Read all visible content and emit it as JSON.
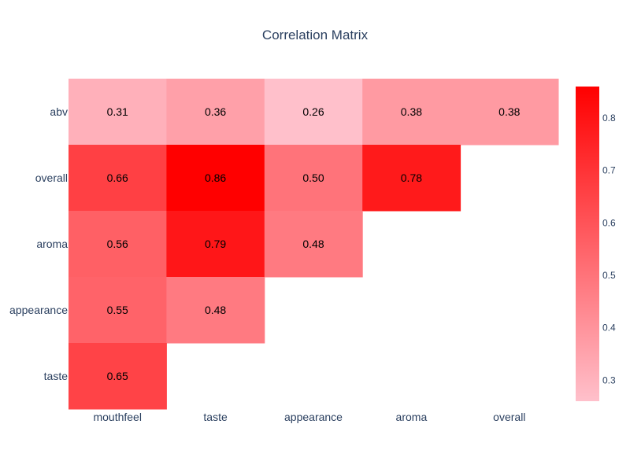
{
  "chart_data": {
    "type": "heatmap",
    "title": "Correlation Matrix",
    "x": [
      "mouthfeel",
      "taste",
      "appearance",
      "aroma",
      "overall"
    ],
    "y": [
      "abv",
      "overall",
      "aroma",
      "appearance",
      "taste"
    ],
    "z": [
      [
        0.31,
        0.36,
        0.26,
        0.38,
        0.38
      ],
      [
        0.66,
        0.86,
        0.5,
        0.78,
        null
      ],
      [
        0.56,
        0.79,
        0.48,
        null,
        null
      ],
      [
        0.55,
        0.48,
        null,
        null,
        null
      ],
      [
        0.65,
        null,
        null,
        null,
        null
      ]
    ],
    "text": [
      [
        "0.31",
        "0.36",
        "0.26",
        "0.38",
        "0.38"
      ],
      [
        "0.66",
        "0.86",
        "0.50",
        "0.78",
        ""
      ],
      [
        "0.56",
        "0.79",
        "0.48",
        "",
        ""
      ],
      [
        "0.55",
        "0.48",
        "",
        "",
        ""
      ],
      [
        "0.65",
        "",
        "",
        "",
        ""
      ]
    ],
    "colorscale": {
      "low": "#ffc0cb",
      "high": "#ff0000"
    },
    "zrange": [
      0.26,
      0.86
    ],
    "colorbar_ticks": [
      "0.3",
      "0.4",
      "0.5",
      "0.6",
      "0.7",
      "0.8"
    ]
  }
}
